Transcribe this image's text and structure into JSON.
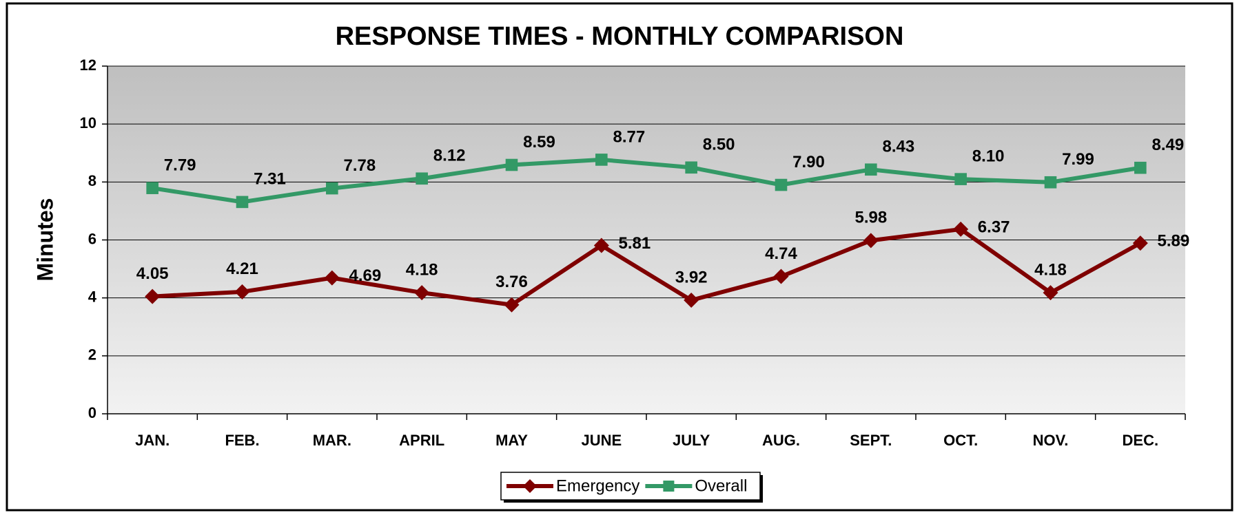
{
  "chart_data": {
    "type": "line",
    "title": "RESPONSE TIMES - MONTHLY COMPARISON",
    "y_label": "Minutes",
    "categories": [
      "JAN.",
      "FEB.",
      "MAR.",
      "APRIL",
      "MAY",
      "JUNE",
      "JULY",
      "AUG.",
      "SEPT.",
      "OCT.",
      "NOV.",
      "DEC."
    ],
    "series": [
      {
        "name": "Emergency",
        "color": "#7f0000",
        "marker": "diamond",
        "values": [
          4.05,
          4.21,
          4.69,
          4.18,
          3.76,
          5.81,
          3.92,
          4.74,
          5.98,
          6.37,
          4.18,
          5.89
        ],
        "value_labels": [
          "4.05",
          "4.21",
          "4.69",
          "4.18",
          "3.76",
          "5.81",
          "3.92",
          "4.74",
          "5.98",
          "6.37",
          "4.18",
          "5.89"
        ]
      },
      {
        "name": "Overall",
        "color": "#339966",
        "marker": "square",
        "values": [
          7.79,
          7.31,
          7.78,
          8.12,
          8.59,
          8.77,
          8.5,
          7.9,
          8.43,
          8.1,
          7.99,
          8.49
        ],
        "value_labels": [
          "7.79",
          "7.31",
          "7.78",
          "8.12",
          "8.59",
          "8.77",
          "8.50",
          "7.90",
          "8.43",
          "8.10",
          "7.99",
          "8.49"
        ]
      }
    ],
    "ylim": [
      0,
      12
    ],
    "yticks": [
      0,
      2,
      4,
      6,
      8,
      10,
      12
    ],
    "grid": true,
    "legend": "bottom"
  }
}
